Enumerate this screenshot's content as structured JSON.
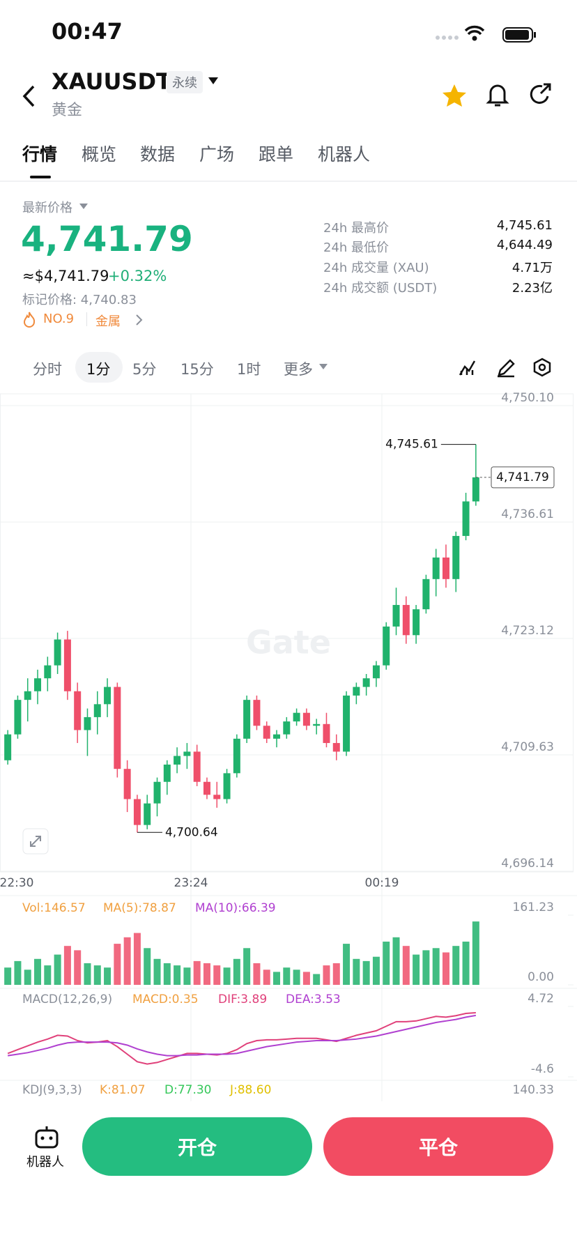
{
  "status_bar": {
    "time": "00:47"
  },
  "header": {
    "symbol": "XAUUSDT",
    "tag": "永续",
    "subtitle": "黄金"
  },
  "tabs": [
    "行情",
    "概览",
    "数据",
    "广场",
    "跟单",
    "机器人"
  ],
  "price": {
    "label": "最新价格",
    "last": "4,741.79",
    "usd": "≈$4,741.79",
    "change": "+0.32%",
    "mark": "标记价格: 4,740.83",
    "rank": "NO.9",
    "sector": "金属"
  },
  "stats": [
    {
      "label": "24h 最高价",
      "value": "4,745.61"
    },
    {
      "label": "24h 最低价",
      "value": "4,644.49"
    },
    {
      "label": "24h 成交量 (XAU)",
      "value": "4.71万"
    },
    {
      "label": "24h 成交额 (USDT)",
      "value": "2.23亿"
    }
  ],
  "intervals": [
    "分时",
    "1分",
    "5分",
    "15分",
    "1时",
    "更多"
  ],
  "chart_data": [
    {
      "type": "candlestick",
      "watermark": "Gate",
      "up_color": "#20b26c",
      "down_color": "#ef4f6a",
      "grid": true,
      "ylim": [
        4696.14,
        4750.1
      ],
      "yticks": [
        {
          "value": 4750.1,
          "label": "4,750.10"
        },
        {
          "value": 4736.61,
          "label": "4,736.61"
        },
        {
          "value": 4723.12,
          "label": "4,723.12"
        },
        {
          "value": 4709.63,
          "label": "4,709.63"
        },
        {
          "value": 4696.14,
          "label": "4,696.14"
        }
      ],
      "x_labels": [
        "22:30",
        "23:24",
        "00:19"
      ],
      "high_label": "4,745.61",
      "low_label": "4,700.64",
      "last_label": "4,741.79",
      "ohlc": [
        [
          4709.0,
          4712.5,
          4708.5,
          4712.0
        ],
        [
          4712.0,
          4716.5,
          4711.5,
          4716.0
        ],
        [
          4716.0,
          4718.5,
          4713.5,
          4717.0
        ],
        [
          4717.0,
          4719.5,
          4715.5,
          4718.5
        ],
        [
          4718.5,
          4721.0,
          4717.0,
          4720.0
        ],
        [
          4720.0,
          4723.8,
          4719.0,
          4723.0
        ],
        [
          4723.0,
          4724.0,
          4716.0,
          4717.0
        ],
        [
          4717.0,
          4718.0,
          4711.0,
          4712.5
        ],
        [
          4712.5,
          4715.0,
          4709.5,
          4714.0
        ],
        [
          4714.0,
          4717.0,
          4712.0,
          4715.5
        ],
        [
          4715.5,
          4718.5,
          4714.0,
          4717.5
        ],
        [
          4717.5,
          4718.0,
          4707.0,
          4708.0
        ],
        [
          4708.0,
          4709.0,
          4703.0,
          4704.5
        ],
        [
          4704.5,
          4705.0,
          4700.64,
          4701.5
        ],
        [
          4701.5,
          4705.0,
          4701.0,
          4704.0
        ],
        [
          4704.0,
          4707.0,
          4702.5,
          4706.5
        ],
        [
          4706.5,
          4709.0,
          4705.0,
          4708.5
        ],
        [
          4708.5,
          4710.5,
          4707.5,
          4709.5
        ],
        [
          4709.5,
          4711.0,
          4708.0,
          4710.0
        ],
        [
          4710.0,
          4710.8,
          4706.0,
          4706.5
        ],
        [
          4706.5,
          4707.0,
          4704.5,
          4705.0
        ],
        [
          4705.0,
          4706.5,
          4703.5,
          4704.5
        ],
        [
          4704.5,
          4708.0,
          4704.0,
          4707.5
        ],
        [
          4707.5,
          4712.0,
          4707.0,
          4711.5
        ],
        [
          4711.5,
          4716.5,
          4711.0,
          4716.0
        ],
        [
          4716.0,
          4716.5,
          4712.5,
          4713.0
        ],
        [
          4713.0,
          4713.5,
          4711.0,
          4711.5
        ],
        [
          4711.5,
          4712.5,
          4710.5,
          4712.0
        ],
        [
          4712.0,
          4714.0,
          4711.5,
          4713.5
        ],
        [
          4713.5,
          4715.0,
          4713.0,
          4714.5
        ],
        [
          4714.5,
          4715.0,
          4712.5,
          4713.0
        ],
        [
          4713.0,
          4713.8,
          4712.0,
          4713.2
        ],
        [
          4713.2,
          4714.5,
          4710.5,
          4711.0
        ],
        [
          4711.0,
          4712.0,
          4709.0,
          4710.0
        ],
        [
          4710.0,
          4717.0,
          4709.5,
          4716.5
        ],
        [
          4716.5,
          4718.0,
          4715.5,
          4717.5
        ],
        [
          4717.5,
          4719.0,
          4716.5,
          4718.5
        ],
        [
          4718.5,
          4720.5,
          4717.5,
          4720.0
        ],
        [
          4720.0,
          4725.0,
          4719.5,
          4724.5
        ],
        [
          4724.5,
          4729.0,
          4723.5,
          4727.0
        ],
        [
          4727.0,
          4728.0,
          4722.5,
          4723.5
        ],
        [
          4723.5,
          4727.0,
          4722.5,
          4726.5
        ],
        [
          4726.5,
          4730.5,
          4726.0,
          4730.0
        ],
        [
          4730.0,
          4733.5,
          4728.0,
          4732.5
        ],
        [
          4732.5,
          4734.0,
          4729.0,
          4730.0
        ],
        [
          4730.0,
          4735.5,
          4728.5,
          4735.0
        ],
        [
          4735.0,
          4740.0,
          4734.5,
          4739.0
        ],
        [
          4739.0,
          4745.61,
          4738.5,
          4741.79
        ]
      ]
    },
    {
      "type": "bar",
      "legend": [
        "Vol:146.57",
        "MA(5):78.87",
        "MA(10):66.39"
      ],
      "legend_colors": [
        "#f0a040",
        "#f0a040",
        "#b040d0"
      ],
      "ylim": [
        0,
        161.23
      ],
      "yticks": [
        161.23,
        {
          "value": 0,
          "label": "0.00"
        }
      ],
      "values": [
        40,
        55,
        35,
        60,
        45,
        70,
        90,
        80,
        50,
        45,
        40,
        95,
        110,
        120,
        85,
        60,
        50,
        45,
        40,
        55,
        50,
        45,
        40,
        60,
        85,
        50,
        35,
        30,
        40,
        35,
        30,
        25,
        45,
        50,
        95,
        60,
        55,
        65,
        100,
        110,
        90,
        70,
        80,
        85,
        75,
        90,
        100,
        146.57
      ]
    },
    {
      "type": "line",
      "legend": [
        "MACD(12,26,9)",
        "MACD:0.35",
        "DIF:3.89",
        "DEA:3.53"
      ],
      "legend_colors": [
        "#8a8f99",
        "#f0a040",
        "#e0407a",
        "#b040d0"
      ],
      "ylim": [
        -4.6,
        4.72
      ],
      "yticks": [
        4.72,
        -4.6
      ],
      "series": [
        {
          "color": "#e0407a",
          "values": [
            -1.5,
            -1.0,
            -0.5,
            0.0,
            0.4,
            0.9,
            0.8,
            0.2,
            -0.1,
            0.0,
            0.2,
            -0.6,
            -1.6,
            -2.6,
            -2.9,
            -2.7,
            -2.3,
            -1.9,
            -1.5,
            -1.5,
            -1.6,
            -1.7,
            -1.5,
            -1.0,
            -0.2,
            0.2,
            0.3,
            0.3,
            0.4,
            0.5,
            0.5,
            0.5,
            0.3,
            0.1,
            0.5,
            0.9,
            1.2,
            1.5,
            2.1,
            2.7,
            2.7,
            2.8,
            3.1,
            3.4,
            3.3,
            3.5,
            3.8,
            3.89
          ]
        },
        {
          "color": "#b040d0",
          "values": [
            -1.8,
            -1.6,
            -1.4,
            -1.1,
            -0.8,
            -0.4,
            -0.1,
            0.0,
            0.0,
            0.0,
            0.0,
            -0.1,
            -0.4,
            -0.9,
            -1.3,
            -1.6,
            -1.8,
            -1.8,
            -1.7,
            -1.7,
            -1.6,
            -1.6,
            -1.6,
            -1.5,
            -1.2,
            -0.9,
            -0.6,
            -0.4,
            -0.2,
            0.0,
            0.1,
            0.2,
            0.2,
            0.2,
            0.3,
            0.4,
            0.6,
            0.8,
            1.1,
            1.4,
            1.7,
            2.0,
            2.3,
            2.6,
            2.8,
            3.0,
            3.3,
            3.53
          ]
        }
      ]
    }
  ],
  "kdj": {
    "legend": [
      "KDJ(9,3,3)",
      "K:81.07",
      "D:77.30",
      "J:88.60"
    ],
    "legend_colors": [
      "#8a8f99",
      "#f0a040",
      "#34c759",
      "#e0c000"
    ],
    "tick": 140.33
  },
  "footer": {
    "robot": "机器人",
    "open": "开仓",
    "close": "平仓"
  }
}
